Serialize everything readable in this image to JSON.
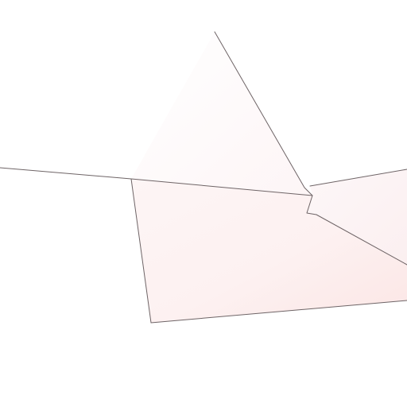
{
  "map": {
    "background_color": "#ffffff",
    "boundary_color": "#6e6466",
    "region_fill_color": "#fdeeee",
    "highlight_fill_color": "#fbe1df"
  }
}
